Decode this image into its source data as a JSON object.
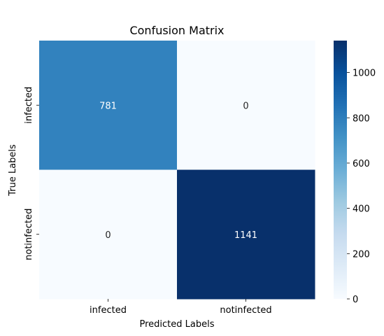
{
  "chart_data": {
    "type": "heatmap",
    "title": "Confusion Matrix",
    "xlabel": "Predicted Labels",
    "ylabel": "True Labels",
    "x_categories": [
      "infected",
      "notinfected"
    ],
    "y_categories": [
      "infected",
      "notinfected"
    ],
    "values": [
      [
        781,
        0
      ],
      [
        0,
        1141
      ]
    ],
    "colormap": "Blues",
    "colors": {
      "low": "#f7fbff",
      "high": "#08306b"
    },
    "colorbar": {
      "min": 0,
      "max": 1141,
      "ticks": [
        0,
        200,
        400,
        600,
        800,
        1000
      ]
    }
  }
}
